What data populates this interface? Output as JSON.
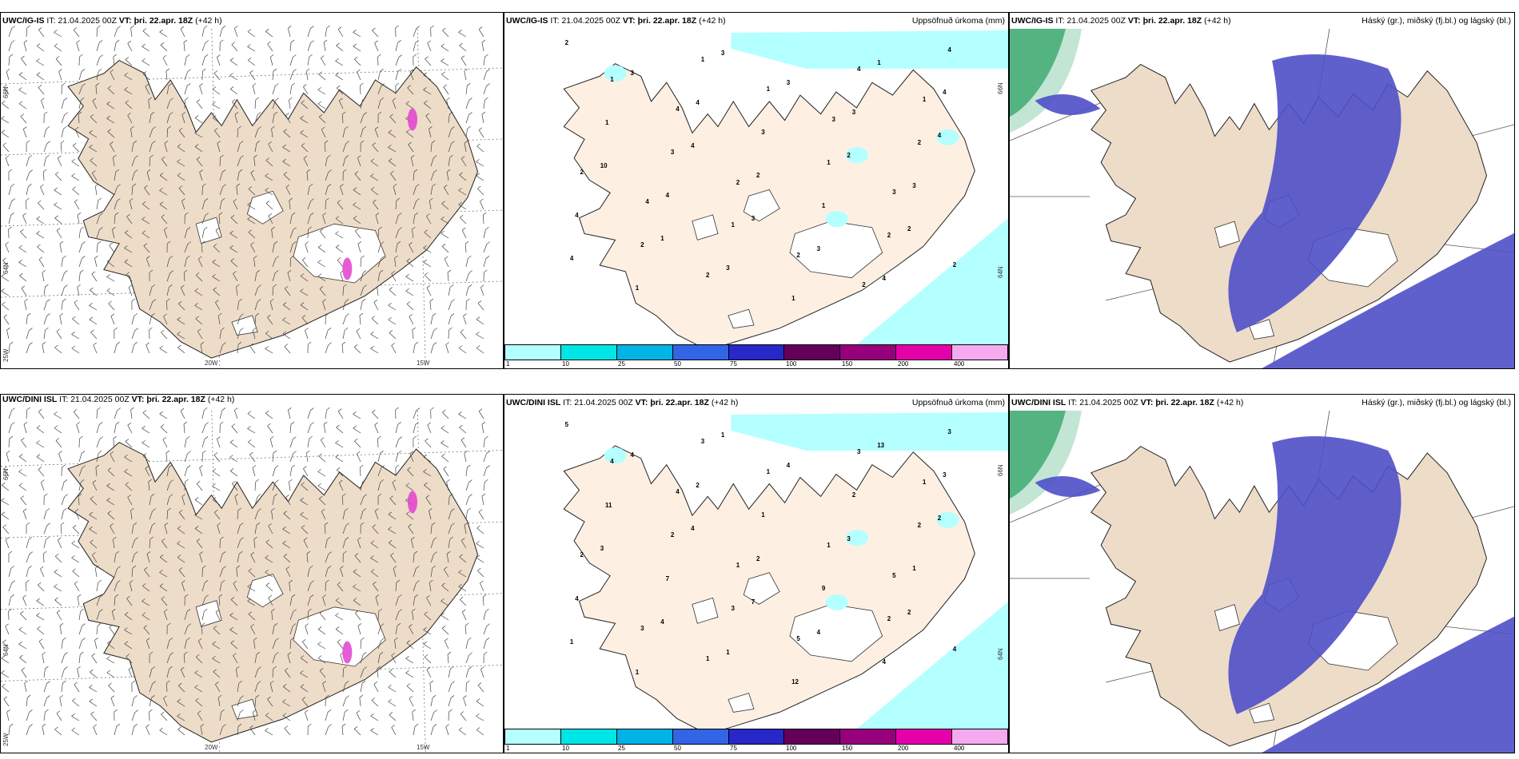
{
  "panels": [
    {
      "id": "p1",
      "kind": "wind",
      "model": "UWC/IG-IS",
      "it_label": "IT:",
      "it_value": "21.04.2025 00Z",
      "vt_label": "VT:",
      "vt_value": "þri. 22.apr. 18Z",
      "lead": "(+42 h)",
      "lat_labels": [
        "66N",
        "64N"
      ],
      "lon_labels": [
        "20W",
        "15W",
        "25W"
      ],
      "overlay_color": "#e23fd0"
    },
    {
      "id": "p2",
      "kind": "precip",
      "model": "UWC/IG-IS",
      "it_label": "IT:",
      "it_value": "21.04.2025 00Z",
      "vt_label": "VT:",
      "vt_value": "þri. 22.apr. 18Z",
      "lead": "(+42 h)",
      "right_title": "Uppsöfnuð úrkoma (mm)",
      "lat_labels": [
        "66N",
        "64N"
      ],
      "colorbar": {
        "colors": [
          "#b4ffff",
          "#00e6e6",
          "#00b4e6",
          "#3264e6",
          "#2828c8",
          "#64005a",
          "#96007d",
          "#e600aa",
          "#f5aaf0"
        ],
        "ticks": [
          "1",
          "10",
          "25",
          "50",
          "75",
          "100",
          "150",
          "200",
          "400"
        ]
      },
      "numbers": [
        "2",
        "3",
        "4",
        "3",
        "2",
        "4",
        "1",
        "1",
        "2",
        "3",
        "3",
        "10",
        "3",
        "4",
        "2",
        "4",
        "3",
        "3",
        "4",
        "4",
        "4",
        "3",
        "1",
        "1",
        "1",
        "1",
        "4",
        "3",
        "4",
        "1",
        "2",
        "1",
        "2",
        "3",
        "4",
        "2",
        "1",
        "1",
        "2",
        "2",
        "1",
        "2",
        "2",
        "1",
        "2",
        "3",
        "4",
        "2",
        "4",
        "3"
      ]
    },
    {
      "id": "p3",
      "kind": "cloud",
      "model": "UWC/IG-IS",
      "it_label": "IT:",
      "it_value": "21.04.2025 00Z",
      "vt_label": "VT:",
      "vt_value": "þri. 22.apr. 18Z",
      "lead": "(+42 h)",
      "right_title": "Háský (gr.), miðský (fj.bl.) og lágský (bl.)",
      "low_cloud_color": "#4f4fc8",
      "high_cloud_color": "#37a86e"
    },
    {
      "id": "p4",
      "kind": "wind",
      "model": "UWC/DINI ISL",
      "it_label": "IT:",
      "it_value": "21.04.2025 00Z",
      "vt_label": "VT:",
      "vt_value": "þri. 22.apr. 18Z",
      "lead": "(+42 h)",
      "lat_labels": [
        "66N",
        "64N"
      ],
      "lon_labels": [
        "20W",
        "15W",
        "25W"
      ],
      "overlay_color": "#e23fd0"
    },
    {
      "id": "p5",
      "kind": "precip",
      "model": "UWC/DINI ISL",
      "it_label": "IT:",
      "it_value": "21.04.2025 00Z",
      "vt_label": "VT:",
      "vt_value": "þri. 22.apr. 18Z",
      "lead": "(+42 h)",
      "right_title": "Uppsöfnuð úrkoma (mm)",
      "lat_labels": [
        "66N",
        "64N"
      ],
      "colorbar": {
        "colors": [
          "#b4ffff",
          "#00e6e6",
          "#00b4e6",
          "#3264e6",
          "#2828c8",
          "#64005a",
          "#96007d",
          "#e600aa",
          "#f5aaf0"
        ],
        "ticks": [
          "1",
          "10",
          "25",
          "50",
          "75",
          "100",
          "150",
          "200",
          "400"
        ]
      },
      "numbers": [
        "5",
        "7",
        "2",
        "1",
        "2",
        "4",
        "13",
        "4",
        "3",
        "4",
        "4",
        "3",
        "4",
        "1",
        "2",
        "3",
        "1",
        "1",
        "2",
        "4",
        "7",
        "2",
        "1",
        "9",
        "11",
        "12",
        "4",
        "1",
        "3",
        "3",
        "2",
        "3",
        "2",
        "2",
        "3",
        "3",
        "1",
        "4",
        "5",
        "2",
        "1",
        "4",
        "1",
        "1",
        "1",
        "5",
        "4"
      ]
    },
    {
      "id": "p6",
      "kind": "cloud",
      "model": "UWC/DINI ISL",
      "it_label": "IT:",
      "it_value": "21.04.2025 00Z",
      "vt_label": "VT:",
      "vt_value": "þri. 22.apr. 18Z",
      "lead": "(+42 h)",
      "right_title": "Háský (gr.), miðský (fj.bl.) og lágský (bl.)",
      "low_cloud_color": "#4f4fc8",
      "high_cloud_color": "#37a86e"
    }
  ]
}
